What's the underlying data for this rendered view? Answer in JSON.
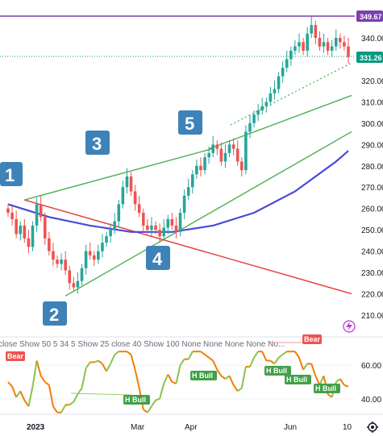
{
  "chart_data": {
    "type": "candlestick",
    "price_axis": {
      "ticks": [
        "340.00",
        "330.00",
        "320.00",
        "310.00",
        "300.00",
        "290.00",
        "280.00",
        "270.00",
        "260.00",
        "250.00",
        "240.00",
        "230.00",
        "220.00",
        "210.00"
      ],
      "range": [
        200,
        355
      ]
    },
    "time_axis": {
      "ticks": [
        "2023",
        "Mar",
        "Apr",
        "Jun",
        "10"
      ]
    },
    "price_tags": [
      {
        "label": "349.67",
        "color": "#7b3fb0"
      },
      {
        "label": "331.26",
        "color": "#089981"
      }
    ],
    "close_series": [
      [
        0,
        258
      ],
      [
        1,
        255
      ],
      [
        2,
        248
      ],
      [
        3,
        252
      ],
      [
        4,
        246
      ],
      [
        5,
        242
      ],
      [
        6,
        252
      ],
      [
        7,
        262
      ],
      [
        8,
        256
      ],
      [
        9,
        246
      ],
      [
        10,
        240
      ],
      [
        11,
        236
      ],
      [
        12,
        234
      ],
      [
        13,
        236
      ],
      [
        14,
        231
      ],
      [
        15,
        225
      ],
      [
        16,
        223
      ],
      [
        17,
        226
      ],
      [
        18,
        232
      ],
      [
        19,
        240
      ],
      [
        20,
        238
      ],
      [
        21,
        236
      ],
      [
        22,
        240
      ],
      [
        23,
        244
      ],
      [
        24,
        247
      ],
      [
        25,
        250
      ],
      [
        26,
        254
      ],
      [
        27,
        262
      ],
      [
        28,
        270
      ],
      [
        29,
        275
      ],
      [
        30,
        268
      ],
      [
        31,
        262
      ],
      [
        32,
        258
      ],
      [
        33,
        252
      ],
      [
        34,
        250
      ],
      [
        35,
        252
      ],
      [
        36,
        250
      ],
      [
        37,
        247
      ],
      [
        38,
        251
      ],
      [
        39,
        255
      ],
      [
        40,
        252
      ],
      [
        41,
        249
      ],
      [
        42,
        258
      ],
      [
        43,
        266
      ],
      [
        44,
        270
      ],
      [
        45,
        276
      ],
      [
        46,
        280
      ],
      [
        47,
        278
      ],
      [
        48,
        284
      ],
      [
        49,
        286
      ],
      [
        50,
        290
      ],
      [
        51,
        288
      ],
      [
        52,
        282
      ],
      [
        53,
        286
      ],
      [
        54,
        290
      ],
      [
        55,
        288
      ],
      [
        56,
        282
      ],
      [
        57,
        278
      ],
      [
        58,
        296
      ],
      [
        59,
        300
      ],
      [
        60,
        304
      ],
      [
        61,
        306
      ],
      [
        62,
        308
      ],
      [
        63,
        310
      ],
      [
        64,
        314
      ],
      [
        65,
        316
      ],
      [
        66,
        322
      ],
      [
        67,
        326
      ],
      [
        68,
        330
      ],
      [
        69,
        334
      ],
      [
        70,
        336
      ],
      [
        71,
        338
      ],
      [
        72,
        334
      ],
      [
        73,
        342
      ],
      [
        74,
        346
      ],
      [
        75,
        340
      ],
      [
        76,
        336
      ],
      [
        77,
        338
      ],
      [
        78,
        334
      ],
      [
        79,
        336
      ],
      [
        80,
        340
      ],
      [
        81,
        338
      ],
      [
        82,
        336
      ],
      [
        83,
        331
      ]
    ],
    "sma_100": [
      [
        0,
        262
      ],
      [
        10,
        256
      ],
      [
        20,
        252
      ],
      [
        30,
        249
      ],
      [
        40,
        249
      ],
      [
        50,
        252
      ],
      [
        60,
        258
      ],
      [
        70,
        268
      ],
      [
        80,
        282
      ],
      [
        83,
        287
      ]
    ],
    "trendlines": [
      {
        "color": "#4caf50",
        "from": [
          4,
          264
        ],
        "to": [
          49,
          288
        ]
      },
      {
        "color": "#4caf50",
        "from": [
          14,
          219
        ],
        "to": [
          83,
          296
        ]
      },
      {
        "color": "#4caf50",
        "from": [
          49,
          288
        ],
        "to": [
          83,
          313
        ]
      },
      {
        "color": "#e53935",
        "from": [
          4,
          264
        ],
        "to": [
          83,
          220
        ]
      }
    ],
    "wave_labels": [
      "1",
      "2",
      "3",
      "4",
      "5"
    ]
  },
  "indicator": {
    "title": "close Show 50 5 34 5 Show 25 close 40 Show 100 None None None None No...",
    "ticks": [
      "60.00",
      "40.00"
    ],
    "signals": [
      "Bear",
      "H Bull",
      "H Bull",
      "H Bull",
      "H Bull",
      "Bear",
      "H Bull"
    ]
  },
  "icons": [
    "lightning-icon",
    "settings-gear-icon"
  ]
}
